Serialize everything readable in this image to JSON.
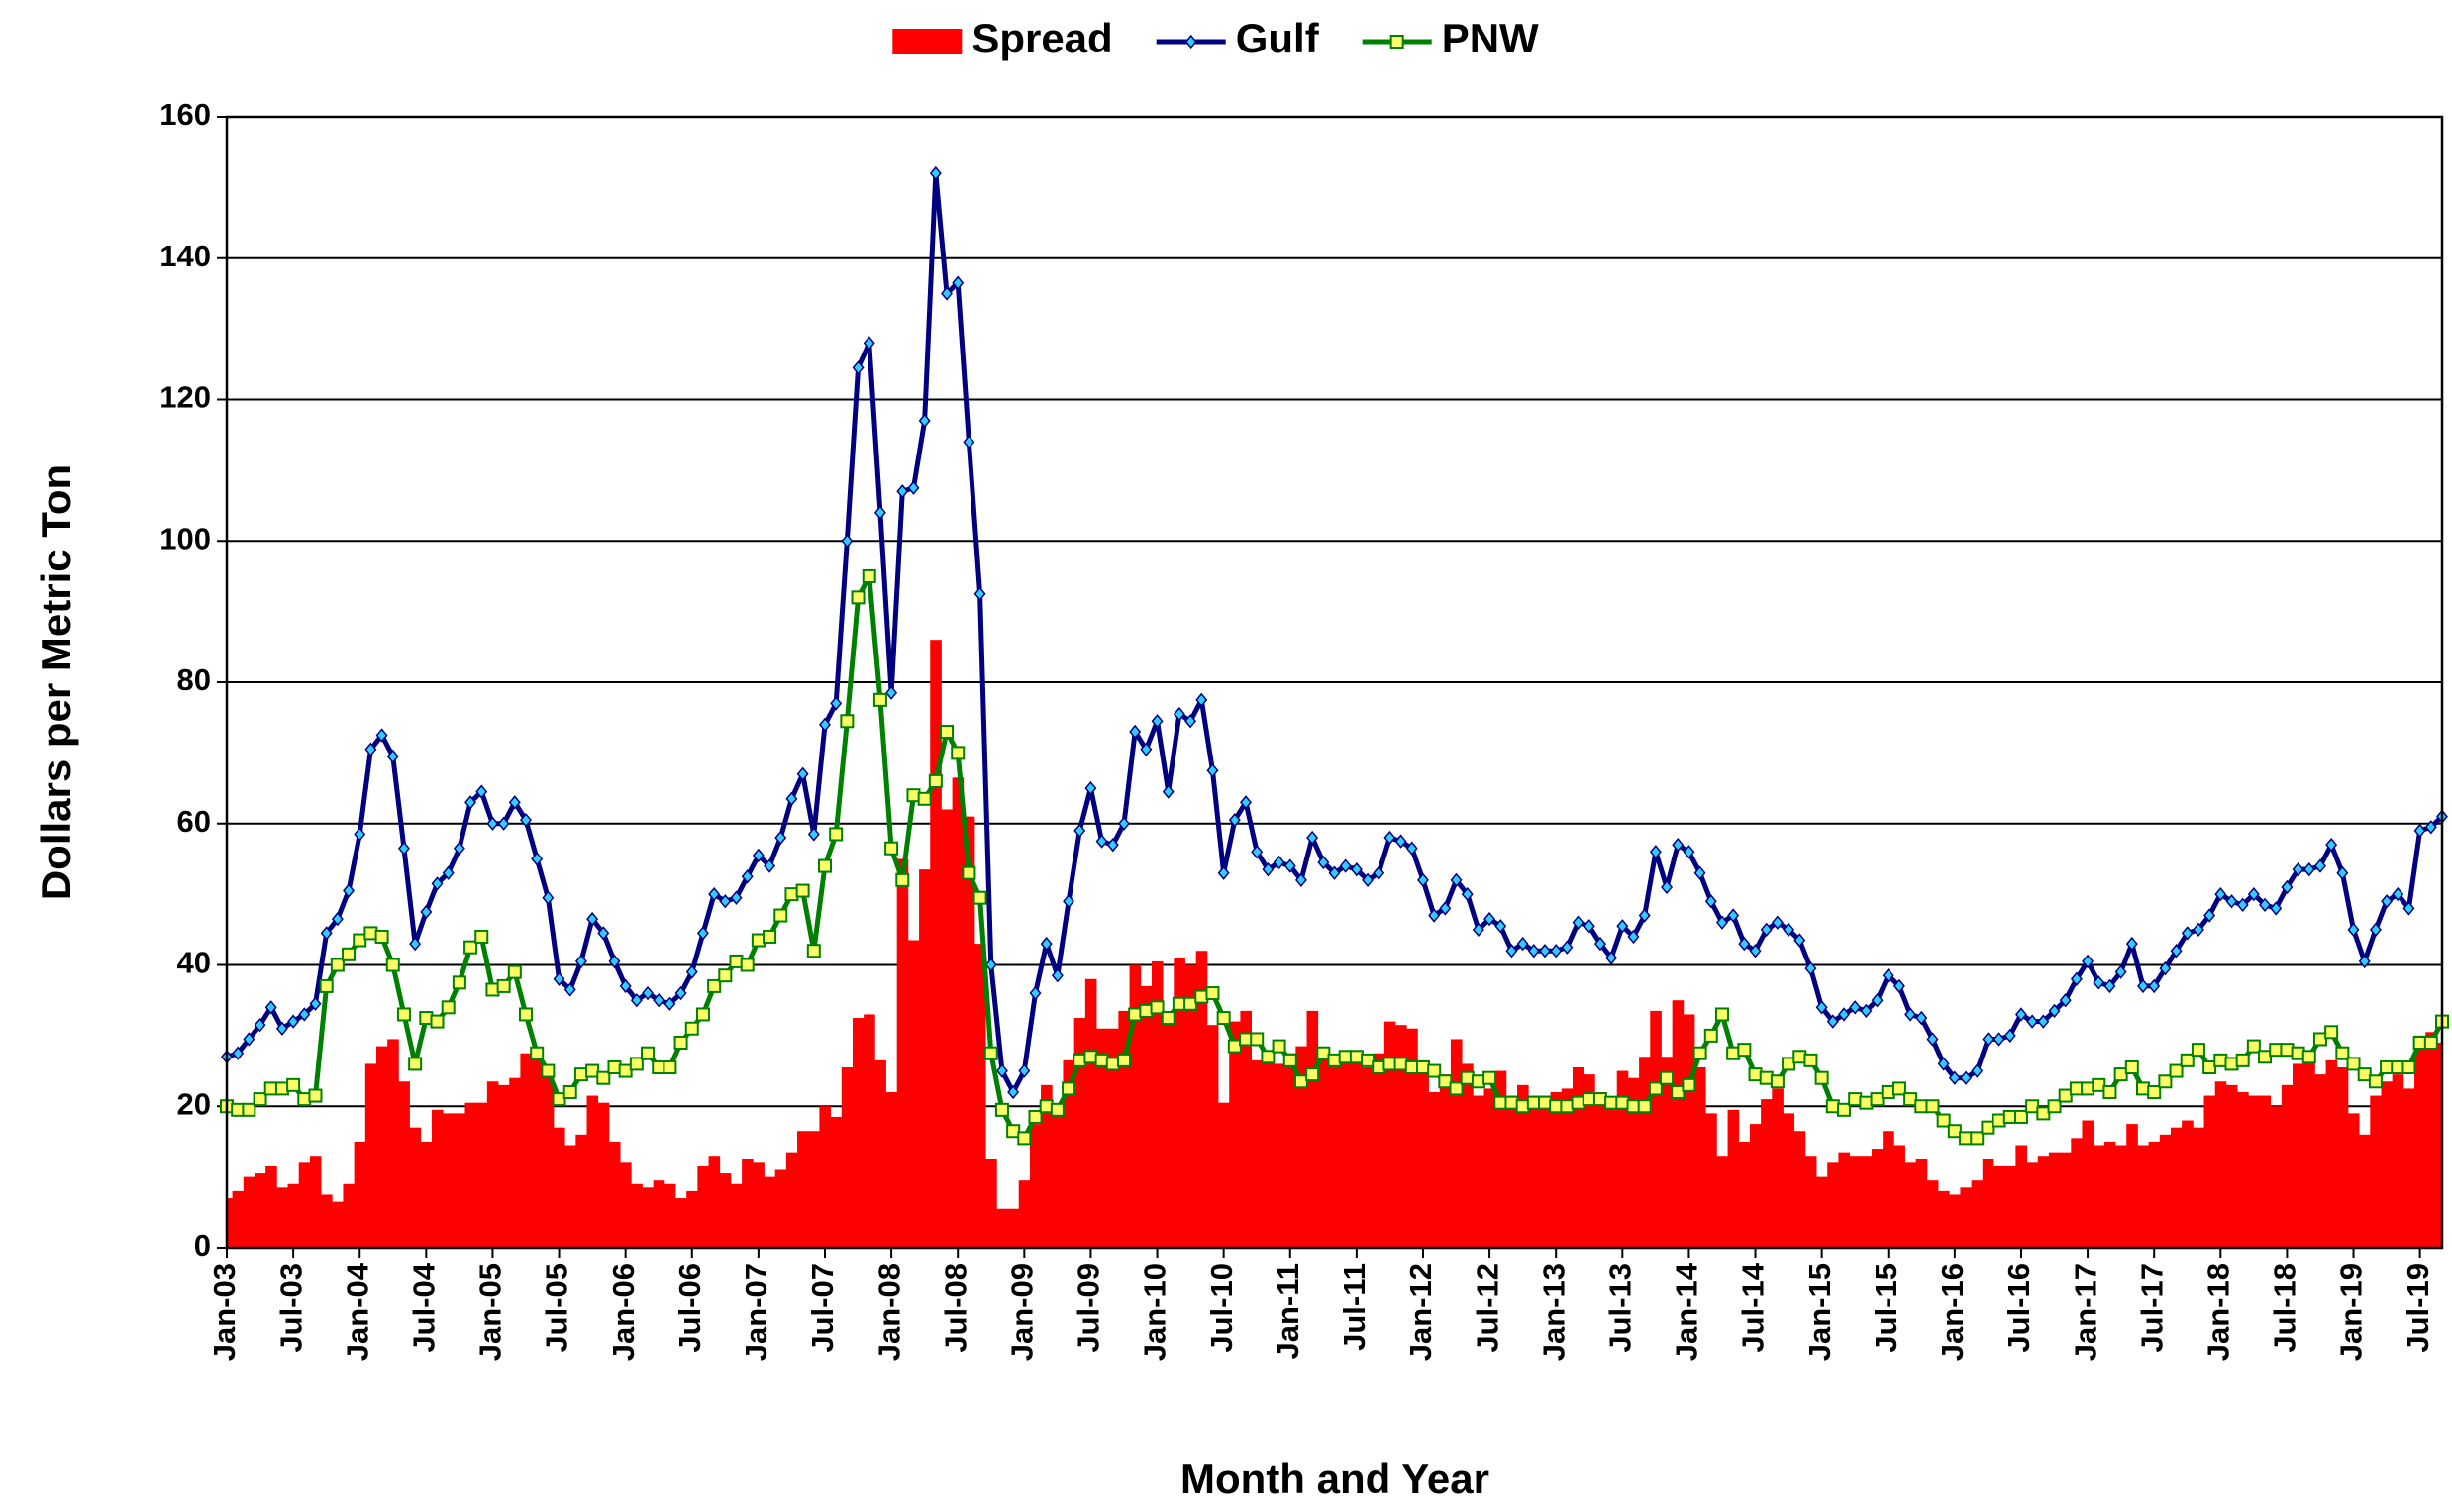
{
  "chart_data": {
    "type": "combo",
    "xlabel": "Month and Year",
    "ylabel": "Dollars per Metric Ton",
    "legend": "top",
    "grid": true,
    "ylim": [
      0,
      160
    ],
    "yticks": [
      0,
      20,
      40,
      60,
      80,
      100,
      120,
      140,
      160
    ],
    "categories": [
      "Jan-03",
      null,
      null,
      null,
      null,
      null,
      "Jul-03",
      null,
      null,
      null,
      null,
      null,
      "Jan-04",
      null,
      null,
      null,
      null,
      null,
      "Jul-04",
      null,
      null,
      null,
      null,
      null,
      "Jan-05",
      null,
      null,
      null,
      null,
      null,
      "Jul-05",
      null,
      null,
      null,
      null,
      null,
      "Jan-06",
      null,
      null,
      null,
      null,
      null,
      "Jul-06",
      null,
      null,
      null,
      null,
      null,
      "Jan-07",
      null,
      null,
      null,
      null,
      null,
      "Jul-07",
      null,
      null,
      null,
      null,
      null,
      "Jan-08",
      null,
      null,
      null,
      null,
      null,
      "Jul-08",
      null,
      null,
      null,
      null,
      null,
      "Jan-09",
      null,
      null,
      null,
      null,
      null,
      "Jul-09",
      null,
      null,
      null,
      null,
      null,
      "Jan-10",
      null,
      null,
      null,
      null,
      null,
      "Jul-10",
      null,
      null,
      null,
      null,
      null,
      "Jan-11",
      null,
      null,
      null,
      null,
      null,
      "Jul-11",
      null,
      null,
      null,
      null,
      null,
      "Jan-12",
      null,
      null,
      null,
      null,
      null,
      "Jul-12",
      null,
      null,
      null,
      null,
      null,
      "Jan-13",
      null,
      null,
      null,
      null,
      null,
      "Jul-13",
      null,
      null,
      null,
      null,
      null,
      "Jan-14",
      null,
      null,
      null,
      null,
      null,
      "Jul-14",
      null,
      null,
      null,
      null,
      null,
      "Jan-15",
      null,
      null,
      null,
      null,
      null,
      "Jul-15",
      null,
      null,
      null,
      null,
      null,
      "Jan-16",
      null,
      null,
      null,
      null,
      null,
      "Jul-16",
      null,
      null,
      null,
      null,
      null,
      "Jan-17",
      null,
      null,
      null,
      null,
      null,
      "Jul-17",
      null,
      null,
      null,
      null,
      null,
      "Jan-18",
      null,
      null,
      null,
      null,
      null,
      "Jul-18",
      null,
      null,
      null,
      null,
      null,
      "Jan-19",
      null,
      null,
      null,
      null,
      null,
      "Jul-19",
      null,
      null
    ],
    "series": [
      {
        "name": "Spread",
        "type": "bar",
        "color": "#ff0000",
        "values": [
          7,
          8,
          10,
          10.5,
          11.5,
          8.5,
          9,
          12,
          13,
          7.5,
          6.5,
          9,
          15,
          26,
          28.5,
          29.5,
          23.5,
          17,
          15,
          19.5,
          19,
          19,
          20.5,
          20.5,
          23.5,
          23,
          24,
          27.5,
          27.5,
          24.5,
          17,
          14.5,
          16,
          21.5,
          20.5,
          15,
          12,
          9,
          8.5,
          9.5,
          9,
          7,
          8,
          11.5,
          13,
          10.5,
          9,
          12.5,
          12,
          10,
          11,
          13.5,
          16.5,
          16.5,
          20,
          18.5,
          25.5,
          32.5,
          33,
          26.5,
          22,
          55,
          43.5,
          53.5,
          86,
          62,
          66.5,
          61,
          43,
          12.5,
          5.5,
          5.5,
          9.5,
          17.5,
          23,
          19,
          26.5,
          32.5,
          38,
          31,
          31,
          33.5,
          40,
          37,
          40.5,
          32,
          41,
          40,
          42,
          31.5,
          20.5,
          32,
          33.5,
          26.5,
          26.5,
          26,
          27.5,
          28.5,
          33.5,
          27,
          26.5,
          27,
          26.5,
          25.5,
          27.5,
          32,
          31.5,
          31,
          26.5,
          22,
          24.5,
          29.5,
          26,
          21.5,
          22.5,
          25,
          21.5,
          23,
          21.5,
          21.5,
          22,
          22.5,
          25.5,
          24.5,
          22,
          20.5,
          25,
          24,
          27,
          33.5,
          27,
          35,
          33,
          25.5,
          19,
          13,
          19.5,
          15,
          17.5,
          21,
          22.5,
          19,
          16.5,
          13,
          10,
          12,
          13.5,
          13,
          13,
          14,
          16.5,
          14.5,
          12,
          12.5,
          9.5,
          8,
          7.5,
          8.5,
          9.5,
          12.5,
          11.5,
          11.5,
          14.5,
          12,
          13,
          13.5,
          13.5,
          15.5,
          18,
          14.5,
          15,
          14.5,
          17.5,
          14.5,
          15,
          16,
          17,
          18,
          17,
          21.5,
          23.5,
          23,
          22,
          21.5,
          21.5,
          20,
          23,
          26,
          26.5,
          24.5,
          26.5,
          25.5,
          19,
          16,
          21.5,
          23.5,
          24.5,
          22.5,
          30,
          30.5,
          29
        ]
      },
      {
        "name": "Gulf",
        "type": "line",
        "marker": "diamond",
        "color": "#000080",
        "marker_color": "#33ccff",
        "values": [
          27,
          27.5,
          29.5,
          31.5,
          34,
          31,
          32,
          33,
          34.5,
          44.5,
          46.5,
          50.5,
          58.5,
          70.5,
          72.5,
          69.5,
          56.5,
          43,
          47.5,
          51.5,
          53,
          56.5,
          63,
          64.5,
          60,
          60,
          63,
          60.5,
          55,
          49.5,
          38,
          36.5,
          40.5,
          46.5,
          44.5,
          40.5,
          37,
          35,
          36,
          35,
          34.5,
          36,
          39,
          44.5,
          50,
          49,
          49.5,
          52.5,
          55.5,
          54,
          58,
          63.5,
          67,
          58.5,
          74,
          77,
          100,
          124.5,
          128,
          104,
          78.5,
          107,
          107.5,
          117,
          152,
          135,
          136.5,
          114,
          92.5,
          40,
          25,
          22,
          25,
          36,
          43,
          38.5,
          49,
          59,
          65,
          57.5,
          57,
          60,
          73,
          70.5,
          74.5,
          64.5,
          75.5,
          74.5,
          77.5,
          67.5,
          53,
          60.5,
          63,
          56,
          53.5,
          54.5,
          54,
          52,
          58,
          54.5,
          53,
          54,
          53.5,
          52,
          53,
          58,
          57.5,
          56.5,
          52,
          47,
          48,
          52,
          50,
          45,
          46.5,
          45.5,
          42,
          43,
          42,
          42,
          42,
          42.5,
          46,
          45.5,
          43,
          41,
          45.5,
          44,
          47,
          56,
          51,
          57,
          56,
          53,
          49,
          46,
          47,
          43,
          42,
          45,
          46,
          45,
          43.5,
          39.5,
          34,
          32,
          33,
          34,
          33.5,
          35,
          38.5,
          37,
          33,
          32.5,
          29.5,
          26,
          24,
          24,
          25,
          29.5,
          29.5,
          30,
          33,
          32,
          32,
          33.5,
          35,
          38,
          40.5,
          37.5,
          37,
          39,
          43,
          37,
          37,
          39.5,
          42,
          44.5,
          45,
          47,
          50,
          49,
          48.5,
          50,
          48.5,
          48,
          51,
          53.5,
          53.5,
          54,
          57,
          53,
          45,
          40.5,
          45,
          49,
          50,
          48,
          59,
          59.5,
          61
        ]
      },
      {
        "name": "PNW",
        "type": "line",
        "marker": "square",
        "color": "#008000",
        "marker_color": "#ffff66",
        "values": [
          20,
          19.5,
          19.5,
          21,
          22.5,
          22.5,
          23,
          21,
          21.5,
          37,
          40,
          41.5,
          43.5,
          44.5,
          44,
          40,
          33,
          26,
          32.5,
          32,
          34,
          37.5,
          42.5,
          44,
          36.5,
          37,
          39,
          33,
          27.5,
          25,
          21,
          22,
          24.5,
          25,
          24,
          25.5,
          25,
          26,
          27.5,
          25.5,
          25.5,
          29,
          31,
          33,
          37,
          38.5,
          40.5,
          40,
          43.5,
          44,
          47,
          50,
          50.5,
          42,
          54,
          58.5,
          74.5,
          92,
          95,
          77.5,
          56.5,
          52,
          64,
          63.5,
          66,
          73,
          70,
          53,
          49.5,
          27.5,
          19.5,
          16.5,
          15.5,
          18.5,
          20,
          19.5,
          22.5,
          26.5,
          27,
          26.5,
          26,
          26.5,
          33,
          33.5,
          34,
          32.5,
          34.5,
          34.5,
          35.5,
          36,
          32.5,
          28.5,
          29.5,
          29.5,
          27,
          28.5,
          26.5,
          23.5,
          24.5,
          27.5,
          26.5,
          27,
          27,
          26.5,
          25.5,
          26,
          26,
          25.5,
          25.5,
          25,
          23.5,
          22.5,
          24,
          23.5,
          24,
          20.5,
          20.5,
          20,
          20.5,
          20.5,
          20,
          20,
          20.5,
          21,
          21,
          20.5,
          20.5,
          20,
          20,
          22.5,
          24,
          22,
          23,
          27.5,
          30,
          33,
          27.5,
          28,
          24.5,
          24,
          23.5,
          26,
          27,
          26.5,
          24,
          20,
          19.5,
          21,
          20.5,
          21,
          22,
          22.5,
          21,
          20,
          20,
          18,
          16.5,
          15.5,
          15.5,
          17,
          18,
          18.5,
          18.5,
          20,
          19,
          20,
          21.5,
          22.5,
          22.5,
          23,
          22,
          24.5,
          25.5,
          22.5,
          22,
          23.5,
          25,
          26.5,
          28,
          25.5,
          26.5,
          26,
          26.5,
          28.5,
          27,
          28,
          28,
          27.5,
          27,
          29.5,
          30.5,
          27.5,
          26,
          24.5,
          23.5,
          25.5,
          25.5,
          25.5,
          29,
          29,
          32
        ]
      }
    ]
  }
}
